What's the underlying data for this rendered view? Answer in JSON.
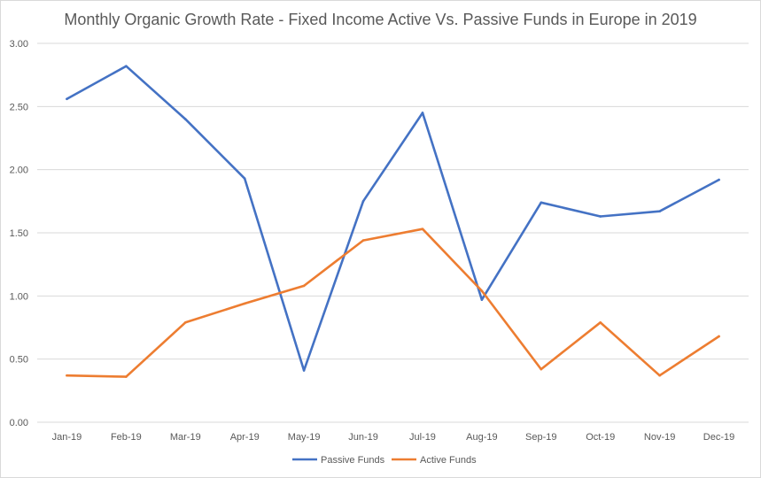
{
  "chart_data": {
    "type": "line",
    "title": "Monthly Organic Growth Rate - Fixed Income Active Vs. Passive Funds in Europe in 2019",
    "xlabel": "",
    "ylabel": "",
    "categories": [
      "Jan-19",
      "Feb-19",
      "Mar-19",
      "Apr-19",
      "May-19",
      "Jun-19",
      "Jul-19",
      "Aug-19",
      "Sep-19",
      "Oct-19",
      "Nov-19",
      "Dec-19"
    ],
    "ylim": [
      0,
      3
    ],
    "yticks": [
      "0.00",
      "0.50",
      "1.00",
      "1.50",
      "2.00",
      "2.50",
      "3.00"
    ],
    "grid": true,
    "legend_position": "bottom",
    "series": [
      {
        "name": "Passive Funds",
        "color": "#4472c4",
        "values": [
          2.56,
          2.82,
          2.4,
          1.93,
          0.41,
          1.75,
          2.45,
          0.97,
          1.74,
          1.63,
          1.67,
          1.92
        ]
      },
      {
        "name": "Active Funds",
        "color": "#ed7d31",
        "values": [
          0.37,
          0.36,
          0.79,
          0.94,
          1.08,
          1.44,
          1.53,
          1.04,
          0.42,
          0.79,
          0.37,
          0.68
        ]
      }
    ]
  }
}
